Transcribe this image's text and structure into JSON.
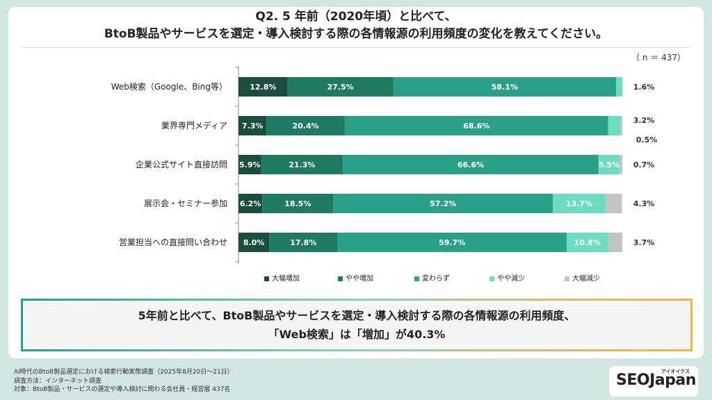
{
  "title": {
    "line1": "Q2. 5 年前（2020年頃）と比べて、",
    "line2": "BtoB製品やサービスを選定・導入検討する際の各情報源の利用頻度の変化を教えてください。"
  },
  "sample_size_label": "（ n ＝ 437）",
  "chart_data": {
    "type": "bar",
    "orientation": "horizontal",
    "stacked": true,
    "normalized": "100%",
    "categories": [
      "Web検索（Google、Bing等）",
      "業界専門メディア",
      "企業公式サイト直接訪問",
      "展示会・セミナー参加",
      "営業担当への直接問い合わせ"
    ],
    "series": [
      {
        "name": "大幅増加",
        "color": "#1b4d3e",
        "values": [
          12.8,
          7.3,
          5.9,
          6.2,
          8.0
        ],
        "labels": [
          "12.8%",
          "7.3%",
          "5.9%",
          "6.2%",
          "8.0%"
        ]
      },
      {
        "name": "やや増加",
        "color": "#1f7a62",
        "values": [
          27.5,
          20.4,
          21.3,
          18.5,
          17.8
        ],
        "labels": [
          "27.5%",
          "20.4%",
          "21.3%",
          "18.5%",
          "17.8%"
        ]
      },
      {
        "name": "変わらず",
        "color": "#2aa088",
        "values": [
          58.1,
          68.6,
          66.6,
          57.2,
          59.7
        ],
        "labels": [
          "58.1%",
          "68.6%",
          "66.6%",
          "57.2%",
          "59.7%"
        ]
      },
      {
        "name": "やや減少",
        "color": "#6ddcc0",
        "values": [
          1.6,
          3.2,
          5.5,
          13.7,
          10.8
        ],
        "labels": [
          "",
          "",
          "5.5%",
          "13.7%",
          "10.8%"
        ]
      },
      {
        "name": "大幅減少",
        "color": "#c3c3c3",
        "values": [
          0.0,
          0.5,
          0.7,
          4.3,
          3.7
        ],
        "labels": [
          "",
          "",
          "",
          "",
          ""
        ]
      }
    ],
    "outside_labels": [
      [
        "1.6%"
      ],
      [
        "3.2%",
        "0.5%"
      ],
      [
        "0.7%"
      ],
      [
        "4.3%"
      ],
      [
        "3.7%"
      ]
    ],
    "xlim": [
      0,
      100
    ],
    "legend_position": "bottom"
  },
  "summary": {
    "line1": "5年前と比べて、BtoB製品やサービスを選定・導入検討する際の各情報源の利用頻度、",
    "line2": "「Web検索」は「増加」が40.3%"
  },
  "footer": {
    "line1": "AI時代のBtoB製品選定における検索行動実態調査（2025年8月20日～21日）",
    "line2": "調査方法：インターネット調査",
    "line3": "対象：BtoB製品・サービスの選定や導入検討に関わる会社員・経営層 437名"
  },
  "logo": {
    "text": "SEOJapan",
    "subtext": "アイオイクス"
  }
}
